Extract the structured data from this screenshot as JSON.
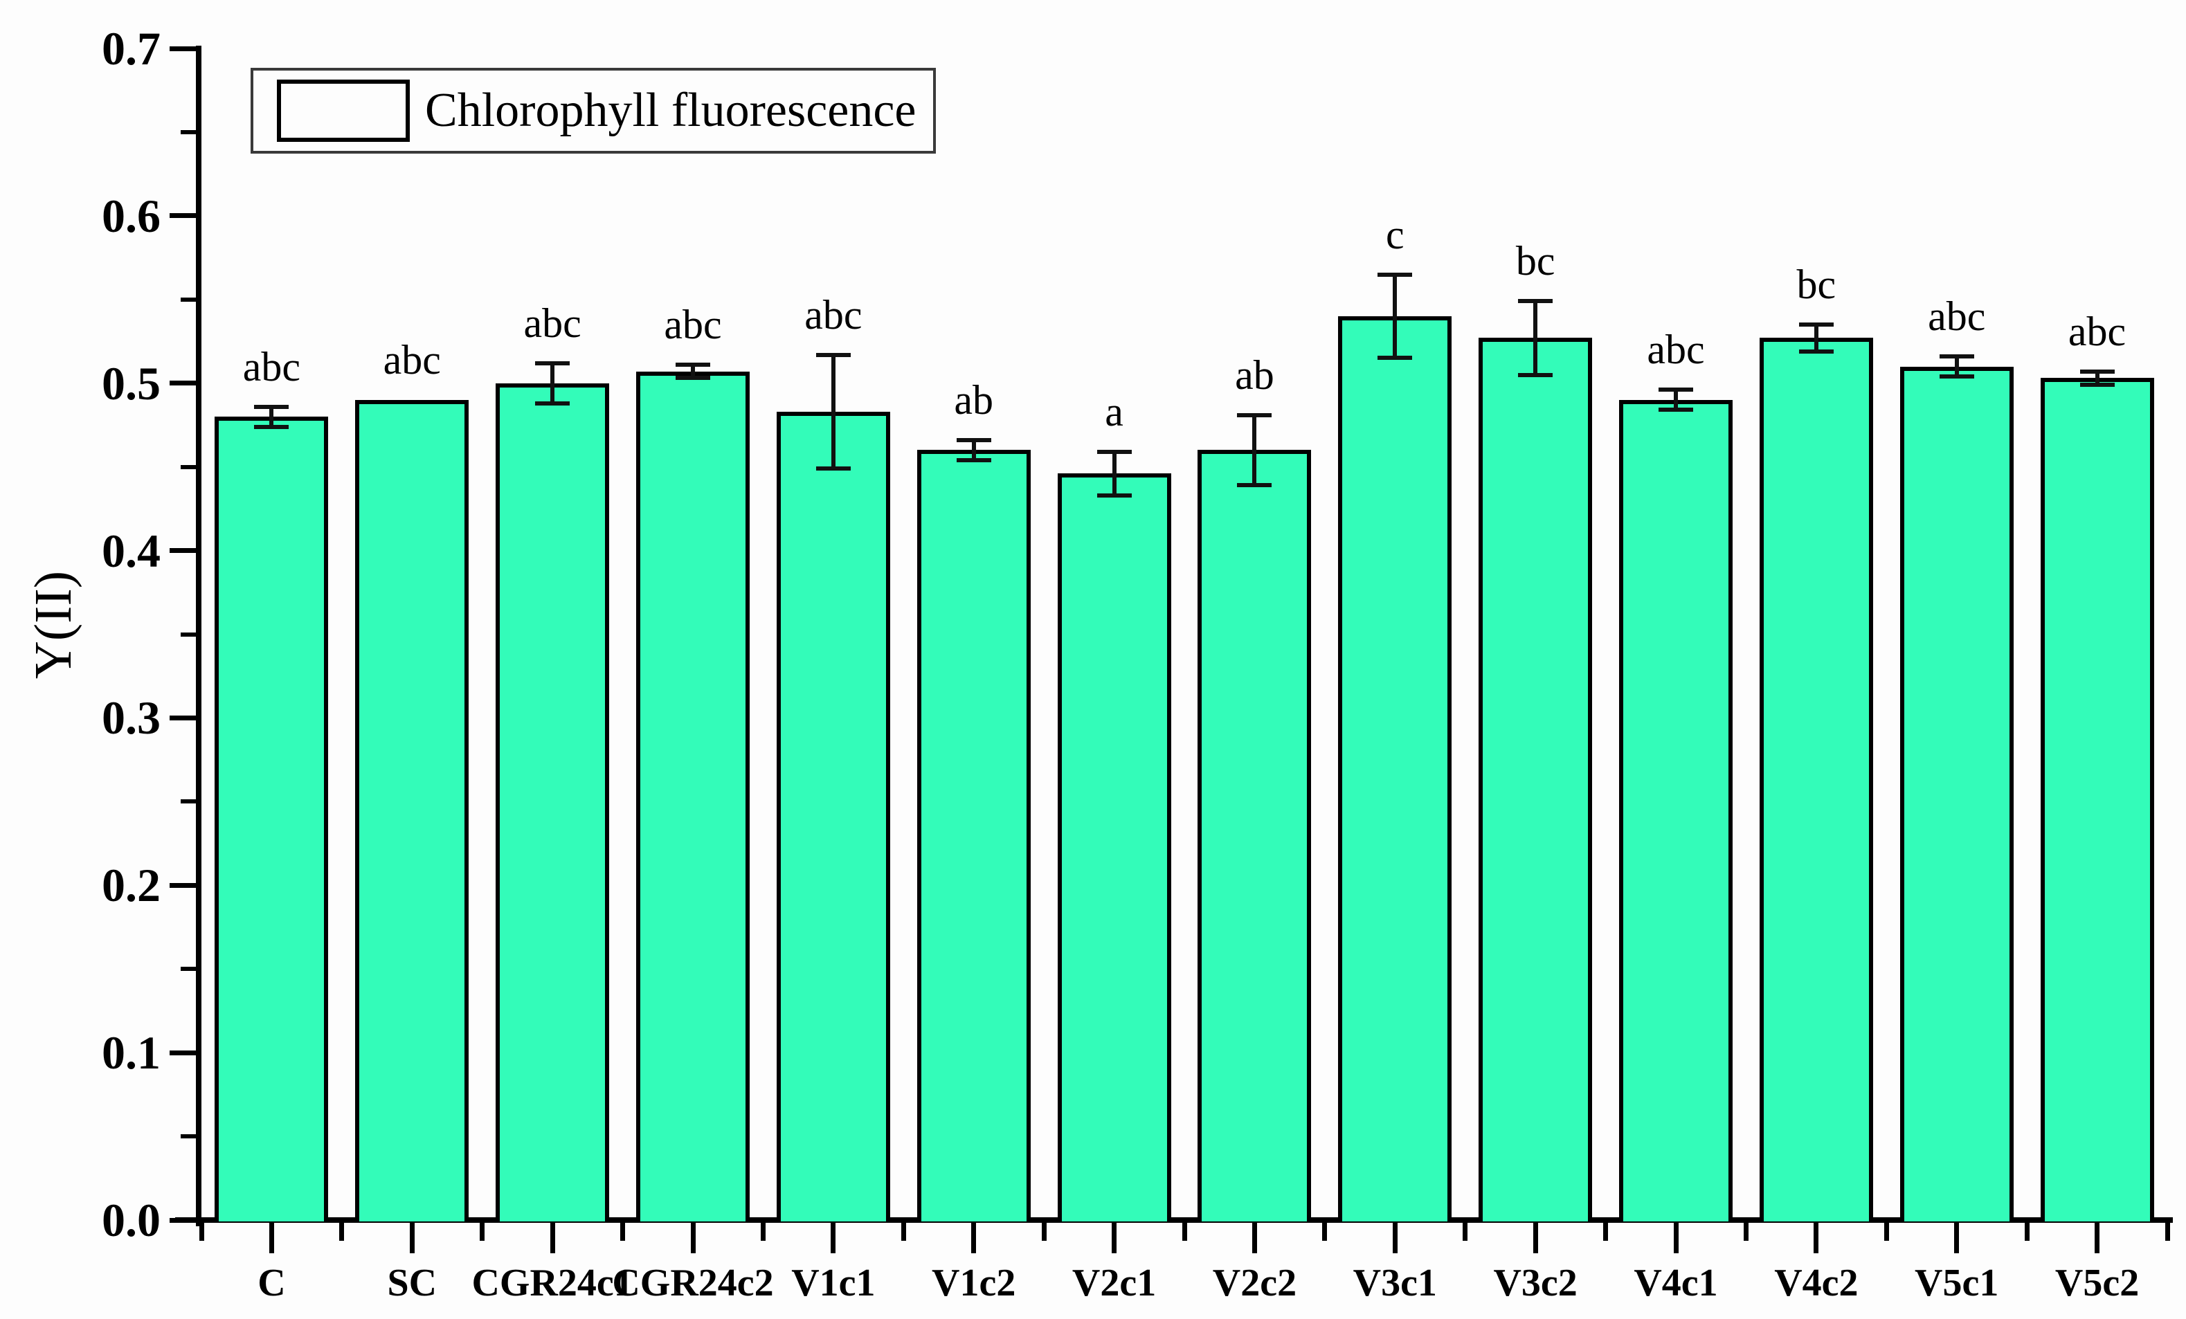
{
  "figure": {
    "background_color": "#fdfdfd"
  },
  "legend": {
    "label": "Chlorophyll fluorescence",
    "position": "top-left"
  },
  "y_axis": {
    "title": "Y(II)"
  },
  "colors": {
    "bar_fill": "#33FCB9",
    "bar_border": "#000000",
    "error_bar": "#111111",
    "axis": "#000000"
  },
  "chart_data": {
    "type": "bar",
    "title": "",
    "xlabel": "",
    "ylabel": "Y(II)",
    "legend_entries": [
      "Chlorophyll fluorescence"
    ],
    "legend_position": "top-left",
    "grid": false,
    "categories": [
      "C",
      "SC",
      "CGR24c1",
      "CGR24c2",
      "V1c1",
      "V1c2",
      "V2c1",
      "V2c2",
      "V3c1",
      "V3c2",
      "V4c1",
      "V4c2",
      "V5c1",
      "V5c2"
    ],
    "series": [
      {
        "name": "Chlorophyll fluorescence",
        "values": [
          0.48,
          0.49,
          0.5,
          0.507,
          0.483,
          0.46,
          0.446,
          0.46,
          0.54,
          0.527,
          0.49,
          0.527,
          0.51,
          0.503
        ],
        "errors": [
          0.006,
          0.0,
          0.012,
          0.004,
          0.034,
          0.006,
          0.013,
          0.021,
          0.025,
          0.022,
          0.006,
          0.008,
          0.006,
          0.004
        ]
      }
    ],
    "significance_letters": [
      "abc",
      "abc",
      "abc",
      "abc",
      "abc",
      "ab",
      "a",
      "ab",
      "c",
      "bc",
      "abc",
      "bc",
      "abc",
      "abc"
    ],
    "ylim": [
      0.0,
      0.7
    ],
    "ytick_values": [
      0.0,
      0.1,
      0.2,
      0.3,
      0.4,
      0.5,
      0.6,
      0.7
    ],
    "ytick_labels": [
      "0.0",
      "0.1",
      "0.2",
      "0.3",
      "0.4",
      "0.5",
      "0.6",
      "0.7"
    ],
    "minor_ytick_values": [
      0.05,
      0.15,
      0.25,
      0.35,
      0.45,
      0.55,
      0.65
    ]
  }
}
